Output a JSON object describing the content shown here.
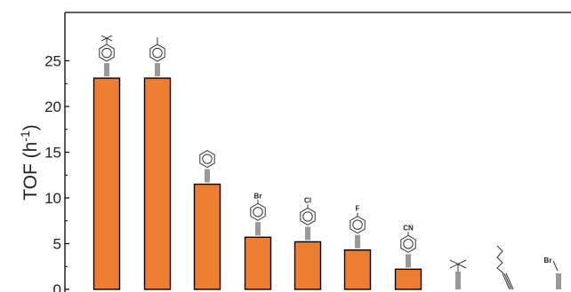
{
  "chart_data": {
    "type": "bar",
    "ylabel": "TOF (h",
    "ylabel_sup": "-1",
    "ylabel_close": ")",
    "ylim": [
      0,
      29
    ],
    "yticks": [
      0,
      5,
      10,
      15,
      20,
      25
    ],
    "ytick_labels": [
      "0",
      "5",
      "10",
      "15",
      "20",
      "25"
    ],
    "grid": false,
    "bar_color": "#ED7D31",
    "categories": [
      "4-tert-butylphenylacetylene",
      "4-methylphenylacetylene",
      "phenylacetylene",
      "4-bromophenylacetylene",
      "4-chlorophenylacetylene",
      "4-fluorophenylacetylene",
      "4-cyanophenylacetylene",
      "3,3-dimethyl-1-butyne",
      "1-octyne",
      "propargyl bromide"
    ],
    "values": [
      23.1,
      23.1,
      11.5,
      5.7,
      5.2,
      4.3,
      2.2,
      0,
      0,
      0
    ],
    "substituent_labels": [
      "",
      "",
      "",
      "Br",
      "Cl",
      "F",
      "CN",
      "",
      "",
      "Br"
    ]
  }
}
